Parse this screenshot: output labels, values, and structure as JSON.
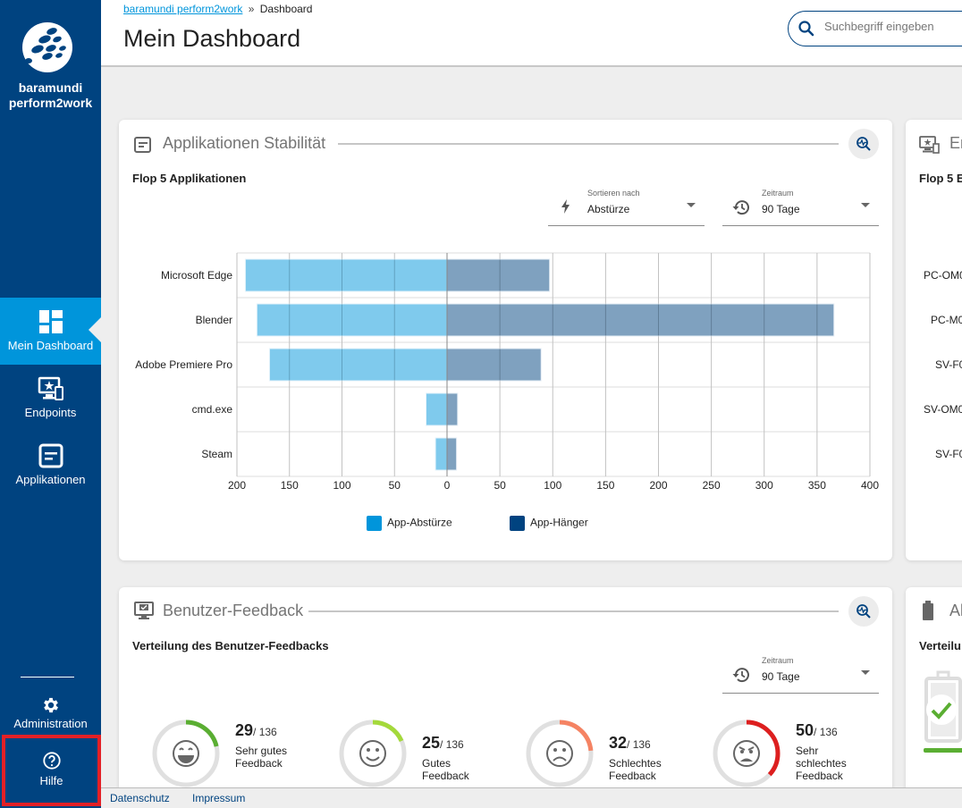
{
  "sidebar": {
    "brand": "baramundi perform2work",
    "items": [
      {
        "label": "Mein Dashboard",
        "icon": "dashboard-icon",
        "active": true
      },
      {
        "label": "Endpoints",
        "icon": "endpoints-icon"
      },
      {
        "label": "Applikationen",
        "icon": "applications-icon"
      }
    ],
    "admin_label": "Administration",
    "help_label": "Hilfe"
  },
  "header": {
    "breadcrumb_link": "baramundi perform2work",
    "breadcrumb_sep": "»",
    "breadcrumb_current": "Dashboard",
    "title": "Mein Dashboard",
    "search_placeholder": "Suchbegriff eingeben"
  },
  "stability_card": {
    "title": "Applikationen Stabilität",
    "subtitle": "Flop 5 Applikationen",
    "sort": {
      "label": "Sortieren nach",
      "value": "Abstürze"
    },
    "period": {
      "label": "Zeitraum",
      "value": "90 Tage"
    }
  },
  "chart_data": {
    "type": "bar",
    "orientation": "horizontal-diverging",
    "categories": [
      "Microsoft Edge",
      "Blender",
      "Adobe Premiere Pro",
      "cmd.exe",
      "Steam"
    ],
    "series": [
      {
        "name": "App-Abstürze",
        "color": "#0095db",
        "direction": "left",
        "values": [
          192,
          181,
          169,
          20,
          11
        ]
      },
      {
        "name": "App-Hänger",
        "color": "#004380",
        "direction": "right",
        "values": [
          97,
          366,
          89,
          10,
          9
        ]
      }
    ],
    "xticks_left": [
      "200",
      "150",
      "100",
      "50"
    ],
    "xticks_right": [
      "0",
      "50",
      "100",
      "150",
      "200",
      "250",
      "300",
      "350",
      "400"
    ],
    "xlim_left": [
      0,
      200
    ],
    "xlim_right": [
      0,
      400
    ],
    "grid": true,
    "legend": "bottom",
    "title": "Flop 5 Applikationen"
  },
  "endpoints_card": {
    "title_partial": "En",
    "subtitle_partial": "Flop 5 E",
    "rows": [
      "PC-OM0",
      "PC-M0",
      "SV-F0",
      "SV-OM0",
      "SV-F0"
    ]
  },
  "feedback_card": {
    "title": "Benutzer-Feedback",
    "subtitle": "Verteilung des Benutzer-Feedbacks",
    "period": {
      "label": "Zeitraum",
      "value": "90 Tage"
    },
    "total": 136,
    "total_label": "/ 136",
    "items": [
      {
        "count": "29",
        "label": "Sehr gutes Feedback",
        "fraction": 0.213,
        "color": "#5aae32",
        "icon": "very-happy-face-icon"
      },
      {
        "count": "25",
        "label": "Gutes Feedback",
        "fraction": 0.184,
        "color": "#a4d93b",
        "icon": "smiley-face-icon"
      },
      {
        "count": "32",
        "label": "Schlechtes Feedback",
        "fraction": 0.235,
        "color": "#f58363",
        "icon": "sad-face-icon"
      },
      {
        "count": "50",
        "label": "Sehr schlechtes Feedback",
        "fraction": 0.368,
        "color": "#dd1f1f",
        "icon": "angry-face-icon"
      }
    ]
  },
  "battery_card": {
    "title_partial": "Al",
    "subtitle_partial": "Verteilu"
  },
  "footer": {
    "privacy": "Datenschutz",
    "imprint": "Impressum"
  }
}
